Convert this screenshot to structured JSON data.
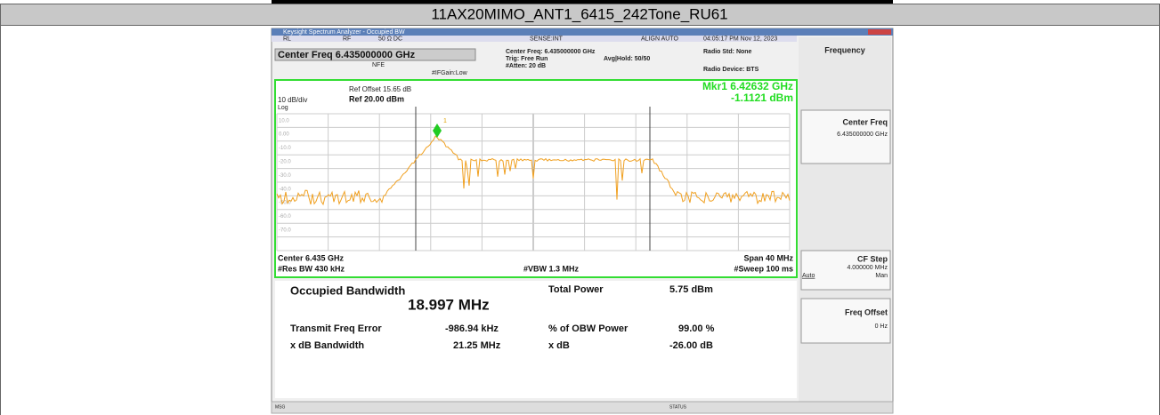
{
  "header": {
    "title": "11AX20MIMO_ANT1_6415_242Tone_RU61"
  },
  "window": {
    "title": "Keysight Spectrum Analyzer - Occupied BW"
  },
  "status_bar": [
    "RL",
    "RF",
    "50 Ω DC",
    "SENSE:INT",
    "ALIGN AUTO",
    "04:05:17 PM Nov 12, 2023"
  ],
  "settings": {
    "center_freq_box": "Center Freq 6.435000000 GHz",
    "nfe": "NFE",
    "ifgain": "#IFGain:Low",
    "center_freq": "Center Freq: 6.435000000 GHz",
    "trig": "Trig: Free Run",
    "avg_hold": "Avg|Hold: 50/50",
    "atten": "#Atten: 20 dB",
    "radio_std": "Radio Std: None",
    "radio_device": "Radio Device: BTS"
  },
  "graph": {
    "ref_offset": "Ref Offset 15.65 dB",
    "scale": "10 dB/div",
    "ref_level": "Ref 20.00 dBm",
    "log": "Log",
    "marker_freq": "Mkr1 6.42632 GHz",
    "marker_level": "-1.1121 dBm",
    "marker_id": "1",
    "y_labels": [
      "10.0",
      "0.00",
      "-10.0",
      "-20.0",
      "-30.0",
      "-40.0",
      "-50.0",
      "-60.0",
      "-70.0"
    ],
    "center": "Center 6.435 GHz",
    "res_bw": "#Res BW 430 kHz",
    "vbw": "#VBW 1.3 MHz",
    "span": "Span 40 MHz",
    "sweep": "#Sweep 100 ms"
  },
  "results": {
    "obw_label": "Occupied Bandwidth",
    "obw_value": "18.997 MHz",
    "total_power_label": "Total Power",
    "total_power_value": "5.75 dBm",
    "freq_error_label": "Transmit Freq Error",
    "freq_error_value": "-986.94 kHz",
    "obw_power_label": "% of OBW Power",
    "obw_power_value": "99.00 %",
    "xdb_bw_label": "x dB Bandwidth",
    "xdb_bw_value": "21.25 MHz",
    "xdb_label": "x dB",
    "xdb_value": "-26.00 dB"
  },
  "menu": {
    "title": "Frequency",
    "center_freq": "Center Freq",
    "center_freq_value": "6.435000000 GHz",
    "cf_step": "CF Step",
    "cf_step_value": "4.000000 MHz",
    "auto": "Auto",
    "man": "Man",
    "freq_offset": "Freq Offset",
    "freq_offset_value": "0 Hz"
  },
  "footer": {
    "msg": "MSG",
    "status": "STATUS"
  }
}
